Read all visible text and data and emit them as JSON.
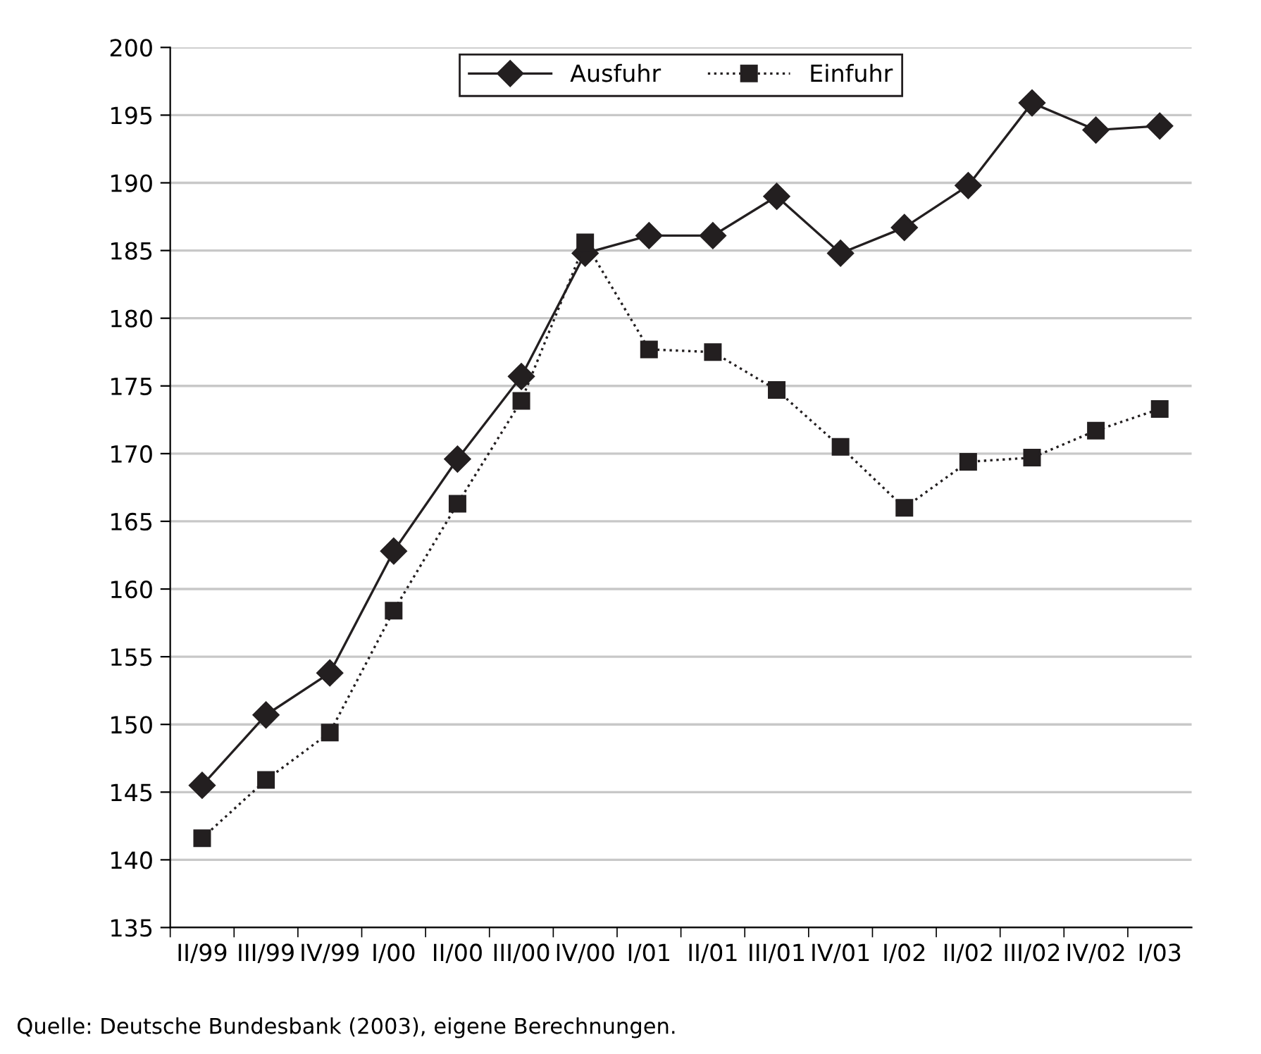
{
  "chart_data": {
    "type": "line",
    "categories": [
      "II/99",
      "III/99",
      "IV/99",
      "I/00",
      "II/00",
      "III/00",
      "IV/00",
      "I/01",
      "II/01",
      "III/01",
      "IV/01",
      "I/02",
      "II/02",
      "III/02",
      "IV/02",
      "I/03"
    ],
    "series": [
      {
        "name": "Ausfuhr",
        "color": "#231f20",
        "marker": "diamond",
        "line_style": "solid",
        "values": [
          145.5,
          150.7,
          153.8,
          162.8,
          169.6,
          175.7,
          184.8,
          186.1,
          186.1,
          189.0,
          184.8,
          186.7,
          189.8,
          195.9,
          193.9,
          194.2
        ]
      },
      {
        "name": "Einfuhr",
        "color": "#231f20",
        "marker": "square",
        "line_style": "dotted",
        "values": [
          141.6,
          145.9,
          149.4,
          158.4,
          166.3,
          173.9,
          185.6,
          177.7,
          177.5,
          174.7,
          170.5,
          166.0,
          169.4,
          169.7,
          171.7,
          173.3
        ]
      }
    ],
    "ylim": [
      135,
      200
    ],
    "yticks": [
      135,
      140,
      145,
      150,
      155,
      160,
      165,
      170,
      175,
      180,
      185,
      190,
      195,
      200
    ],
    "grid": "y",
    "legend": "top",
    "annotations": [
      "Quelle: Deutsche Bundesbank (2003), eigene Berechnungen."
    ]
  }
}
